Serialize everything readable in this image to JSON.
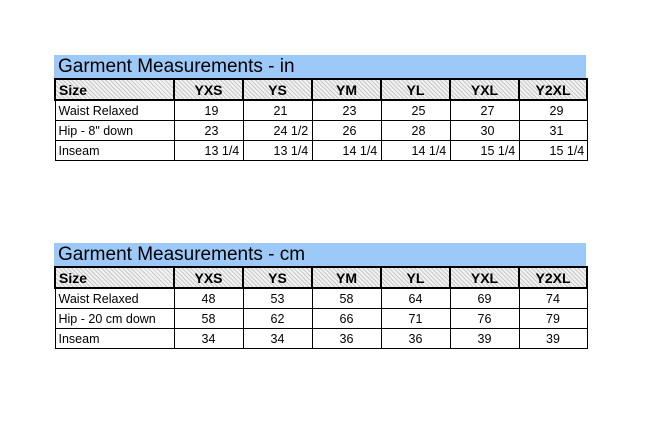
{
  "tables": [
    {
      "title": "Garment Measurements - in",
      "header": [
        "Size",
        "YXS",
        "YS",
        "YM",
        "YL",
        "YXL",
        "Y2XL"
      ],
      "rows": [
        [
          "Waist Relaxed",
          "19",
          "21",
          "23",
          "25",
          "27",
          "29"
        ],
        [
          "Hip - 8\" down",
          "23",
          "24 1/2",
          "26",
          "28",
          "30",
          "31"
        ],
        [
          "Inseam",
          "13 1/4",
          "13 1/4",
          "14 1/4",
          "14 1/4",
          "15 1/4",
          "15 1/4"
        ]
      ]
    },
    {
      "title": "Garment Measurements - cm",
      "header": [
        "Size",
        "YXS",
        "YS",
        "YM",
        "YL",
        "YXL",
        "Y2XL"
      ],
      "rows": [
        [
          "Waist Relaxed",
          "48",
          "53",
          "58",
          "64",
          "69",
          "74"
        ],
        [
          "Hip - 20 cm down",
          "58",
          "62",
          "66",
          "71",
          "76",
          "79"
        ],
        [
          "Inseam",
          "34",
          "34",
          "36",
          "36",
          "39",
          "39"
        ]
      ]
    }
  ],
  "colors": {
    "title_bg": "#9cc9f7",
    "header_bg": "#e8e8e8",
    "border": "#000000"
  }
}
